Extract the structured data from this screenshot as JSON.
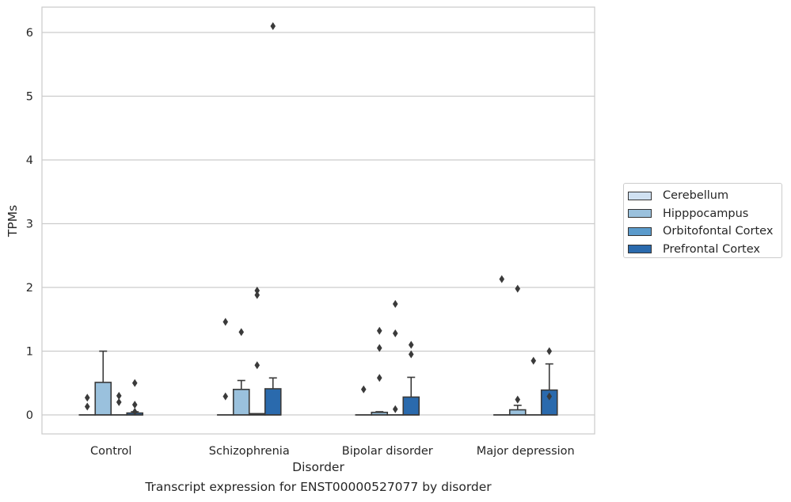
{
  "caption": "Transcript expression for ENST00000527077 by disorder",
  "chart_data": {
    "type": "box",
    "xlabel": "Disorder",
    "ylabel": "TPMs",
    "ylim": [
      -0.3,
      6.4
    ],
    "yticks": [
      0,
      1,
      2,
      3,
      4,
      5,
      6
    ],
    "grid": true,
    "legend_position": "right",
    "categories": [
      "Control",
      "Schizophrenia",
      "Bipolar disorder",
      "Major depression"
    ],
    "series": [
      {
        "name": "Cerebellum",
        "color": "#d0e1f2",
        "boxes": [
          {
            "q1": 0,
            "median": 0,
            "q3": 0,
            "whislo": 0,
            "whishi": 0,
            "fliers": [
              0.13,
              0.27
            ]
          },
          {
            "q1": 0,
            "median": 0,
            "q3": 0,
            "whislo": 0,
            "whishi": 0,
            "fliers": [
              0.29,
              1.46
            ]
          },
          {
            "q1": 0,
            "median": 0,
            "q3": 0,
            "whislo": 0,
            "whishi": 0,
            "fliers": [
              0.4
            ]
          },
          {
            "q1": 0,
            "median": 0,
            "q3": 0,
            "whislo": 0,
            "whishi": 0,
            "fliers": [
              2.13
            ]
          }
        ]
      },
      {
        "name": "Hipppocampus",
        "color": "#9ac1dd",
        "boxes": [
          {
            "q1": 0,
            "median": 0,
            "q3": 0.51,
            "whislo": 0,
            "whishi": 1.0,
            "fliers": []
          },
          {
            "q1": 0,
            "median": 0,
            "q3": 0.4,
            "whislo": 0,
            "whishi": 0.54,
            "fliers": [
              1.3
            ]
          },
          {
            "q1": 0,
            "median": 0,
            "q3": 0.04,
            "whislo": 0,
            "whishi": 0.05,
            "fliers": [
              0.58,
              1.05,
              1.32
            ]
          },
          {
            "q1": 0,
            "median": 0,
            "q3": 0.08,
            "whislo": 0,
            "whishi": 0.15,
            "fliers": [
              0.24,
              1.98
            ]
          }
        ]
      },
      {
        "name": "Orbitofontal Cortex",
        "color": "#5b9bcc",
        "boxes": [
          {
            "q1": 0,
            "median": 0,
            "q3": 0,
            "whislo": 0,
            "whishi": 0,
            "fliers": [
              0.2,
              0.3
            ]
          },
          {
            "q1": 0,
            "median": 0,
            "q3": 0.02,
            "whislo": 0,
            "whishi": 0.02,
            "fliers": [
              0.78,
              1.88,
              1.95
            ]
          },
          {
            "q1": 0,
            "median": 0,
            "q3": 0,
            "whislo": 0,
            "whishi": 0,
            "fliers": [
              0.09,
              1.28,
              1.74
            ]
          },
          {
            "q1": 0,
            "median": 0,
            "q3": 0,
            "whislo": 0,
            "whishi": 0,
            "fliers": [
              0.85
            ]
          }
        ]
      },
      {
        "name": "Prefrontal Cortex",
        "color": "#2a6aad",
        "boxes": [
          {
            "q1": 0,
            "median": 0,
            "q3": 0.03,
            "whislo": 0,
            "whishi": 0.05,
            "fliers": [
              0.05,
              0.16,
              0.5
            ]
          },
          {
            "q1": 0,
            "median": 0,
            "q3": 0.41,
            "whislo": 0,
            "whishi": 0.58,
            "fliers": [
              6.1
            ]
          },
          {
            "q1": 0,
            "median": 0,
            "q3": 0.28,
            "whislo": 0,
            "whishi": 0.59,
            "fliers": [
              0.95,
              1.1
            ]
          },
          {
            "q1": 0,
            "median": 0,
            "q3": 0.39,
            "whislo": 0,
            "whishi": 0.8,
            "fliers": [
              0.29,
              1.0
            ]
          }
        ]
      }
    ]
  }
}
